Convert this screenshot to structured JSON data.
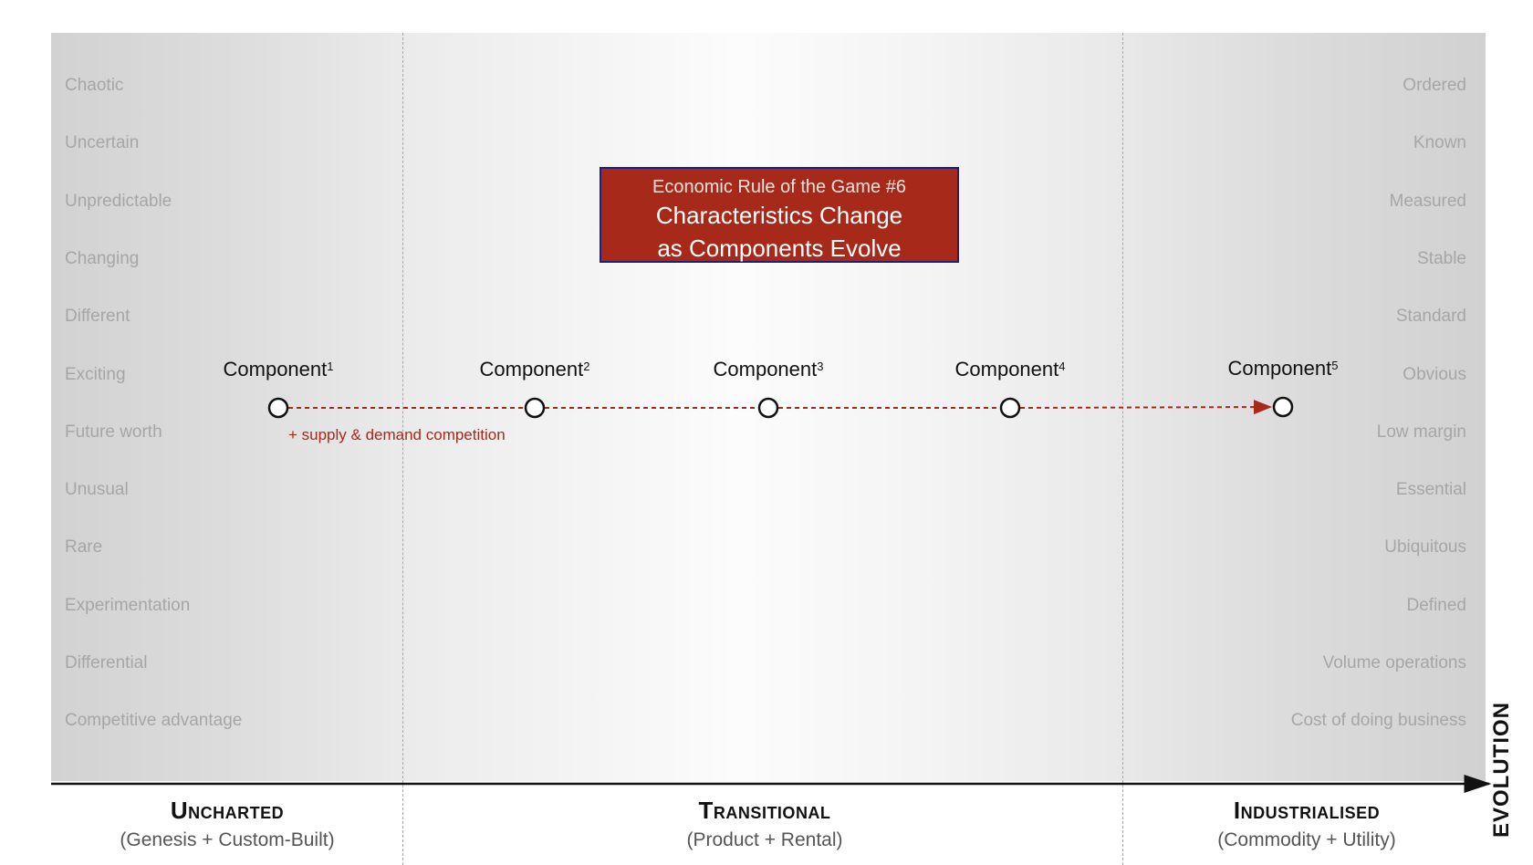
{
  "rule_box": {
    "subtitle": "Economic Rule of the Game #6",
    "title_line1": "Characteristics Change",
    "title_line2": "as Components Evolve"
  },
  "left_characteristics": [
    "Chaotic",
    "Uncertain",
    "Unpredictable",
    "Changing",
    "Different",
    "Exciting",
    "Future worth",
    "Unusual",
    "Rare",
    "Experimentation",
    "Differential",
    "Competitive advantage"
  ],
  "right_characteristics": [
    "Ordered",
    "Known",
    "Measured",
    "Stable",
    "Standard",
    "Obvious",
    "Low margin",
    "Essential",
    "Ubiquitous",
    "Defined",
    "Volume operations",
    "Cost of doing business"
  ],
  "components": [
    {
      "name": "Component",
      "sup": "1"
    },
    {
      "name": "Component",
      "sup": "2"
    },
    {
      "name": "Component",
      "sup": "3"
    },
    {
      "name": "Component",
      "sup": "4"
    },
    {
      "name": "Component",
      "sup": "5"
    }
  ],
  "annotation": "+ supply & demand competition",
  "stages": [
    {
      "title": "Uncharted",
      "subtitle": "(Genesis + Custom-Built)"
    },
    {
      "title": "Transitional",
      "subtitle": "(Product + Rental)"
    },
    {
      "title": "Industrialised",
      "subtitle": "(Commodity + Utility)"
    }
  ],
  "axis_label": "EVOLUTION",
  "colors": {
    "accent": "#a6291a",
    "box_border": "#1f1f7a",
    "muted_text": "#a6a6a6"
  }
}
